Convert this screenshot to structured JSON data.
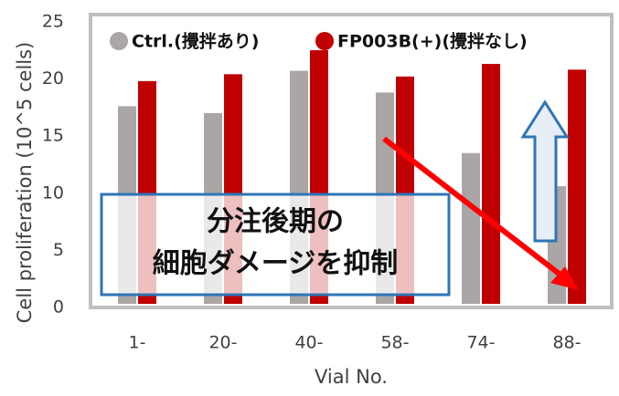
{
  "chart_data": {
    "type": "bar",
    "y_label": "Cell proliferation (10^5 cells)",
    "x_label": "Vial No.",
    "categories": [
      "1-",
      "20-",
      "40-",
      "58-",
      "74-",
      "88-"
    ],
    "series": [
      {
        "name": "Ctrl.(攪拌あり)",
        "color": "#aaa6a6",
        "values": [
          17.3,
          16.7,
          20.4,
          18.5,
          13.2,
          10.3
        ]
      },
      {
        "name": "FP003B(+)(攪拌なし)",
        "color": "#c00000",
        "values": [
          19.5,
          20.1,
          22.2,
          19.9,
          21.0,
          20.5
        ]
      }
    ],
    "ylim": [
      0,
      25
    ],
    "yticks": [
      0,
      5,
      10,
      15,
      20,
      25
    ],
    "annotation": [
      "分注後期の",
      "細胞ダメージを抑制"
    ]
  }
}
